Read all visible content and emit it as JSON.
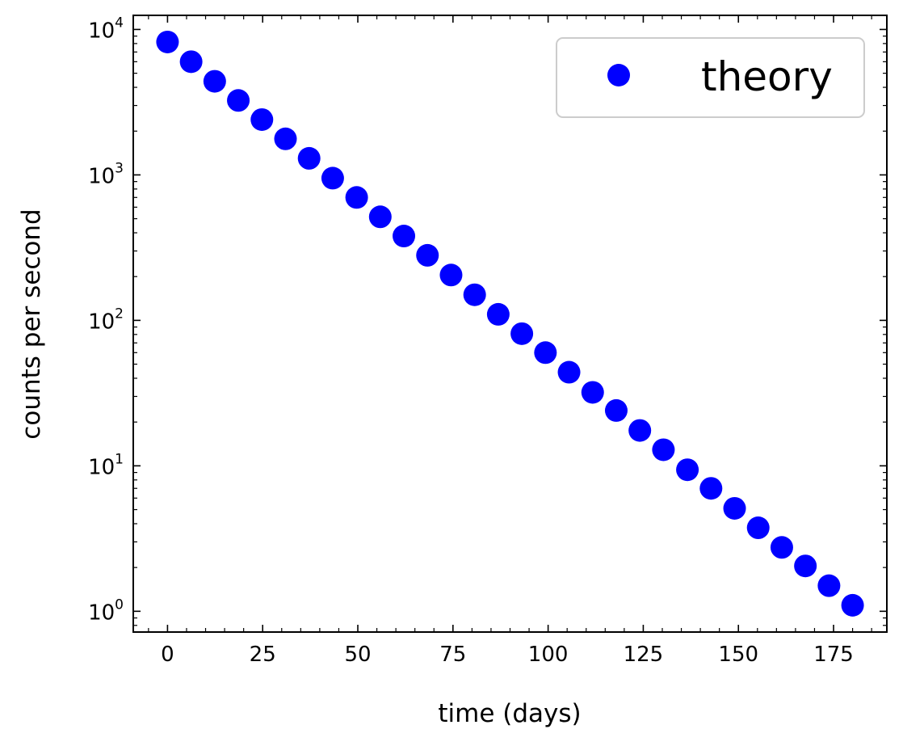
{
  "chart_data": {
    "type": "scatter",
    "xlabel": "time (days)",
    "ylabel": "counts per second",
    "x_scale": "linear",
    "y_scale": "log",
    "xlim": [
      -9,
      189
    ],
    "ylim": [
      0.72,
      12500
    ],
    "x_ticks": [
      0,
      25,
      50,
      75,
      100,
      125,
      150,
      175
    ],
    "y_ticks": [
      {
        "value": 1,
        "base": "10",
        "exp": "0"
      },
      {
        "value": 10,
        "base": "10",
        "exp": "1"
      },
      {
        "value": 100,
        "base": "10",
        "exp": "2"
      },
      {
        "value": 1000,
        "base": "10",
        "exp": "3"
      },
      {
        "value": 10000,
        "base": "10",
        "exp": "4"
      }
    ],
    "grid": false,
    "legend_position": "top-right",
    "series": [
      {
        "name": "theory",
        "color": "#0000ff",
        "marker": "circle",
        "points": [
          [
            0,
            8200
          ],
          [
            6.2,
            6000
          ],
          [
            12.4,
            4400
          ],
          [
            18.6,
            3250
          ],
          [
            24.8,
            2400
          ],
          [
            31,
            1770
          ],
          [
            37.2,
            1300
          ],
          [
            43.4,
            950
          ],
          [
            49.7,
            700
          ],
          [
            55.9,
            515
          ],
          [
            62.1,
            380
          ],
          [
            68.3,
            280
          ],
          [
            74.5,
            205
          ],
          [
            80.7,
            150
          ],
          [
            86.9,
            110
          ],
          [
            93.1,
            81
          ],
          [
            99.3,
            60
          ],
          [
            105.5,
            44
          ],
          [
            111.7,
            32
          ],
          [
            117.9,
            24
          ],
          [
            124.1,
            17.5
          ],
          [
            130.3,
            12.9
          ],
          [
            136.6,
            9.4
          ],
          [
            142.8,
            7
          ],
          [
            149,
            5.1
          ],
          [
            155.2,
            3.75
          ],
          [
            161.4,
            2.75
          ],
          [
            167.6,
            2.05
          ],
          [
            173.8,
            1.5
          ],
          [
            180,
            1.1
          ]
        ]
      }
    ]
  }
}
